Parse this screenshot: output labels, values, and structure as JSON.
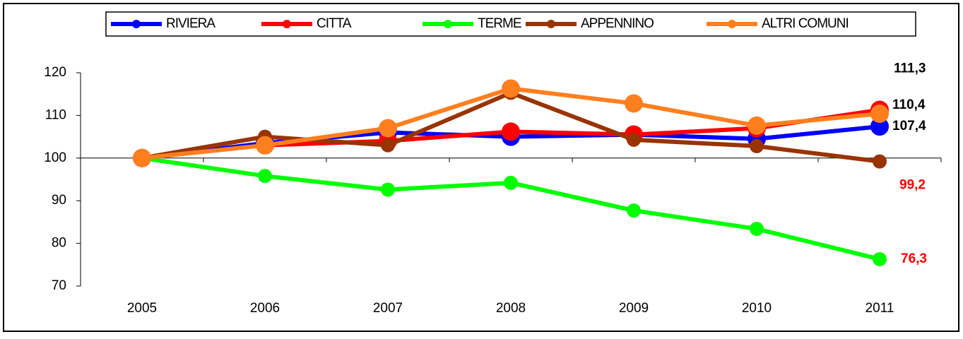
{
  "chart_data": {
    "type": "line",
    "categories": [
      "2005",
      "2006",
      "2007",
      "2008",
      "2009",
      "2010",
      "2011"
    ],
    "series": [
      {
        "name": "RIVIERA",
        "color": "#0000ff",
        "values": [
          100,
          103.5,
          106,
          105,
          105.5,
          104.5,
          107.4
        ],
        "value_labels": [
          null,
          null,
          null,
          null,
          null,
          null,
          "107,4"
        ],
        "label_color": "#000000"
      },
      {
        "name": "CITTA",
        "color": "#ff0000",
        "values": [
          100,
          103,
          104,
          106.2,
          105.5,
          107,
          111.3
        ],
        "value_labels": [
          null,
          null,
          null,
          null,
          null,
          null,
          "111,3"
        ],
        "label_color": "#000000"
      },
      {
        "name": "TERME",
        "color": "#00ff00",
        "values": [
          100,
          95.8,
          92.6,
          94.2,
          87.7,
          83.4,
          76.3
        ],
        "value_labels": [
          null,
          null,
          null,
          null,
          null,
          null,
          "76,3"
        ],
        "label_color": "#ff0000"
      },
      {
        "name": "APPENNINO",
        "color": "#993300",
        "values": [
          100,
          105,
          103,
          115.3,
          104.3,
          102.8,
          99.2
        ],
        "value_labels": [
          null,
          null,
          null,
          null,
          null,
          null,
          "99,2"
        ],
        "label_color": "#ff0000"
      },
      {
        "name": "ALTRI COMUNI",
        "color": "#ff7f1f",
        "values": [
          100,
          103,
          107,
          116.3,
          112.8,
          107.6,
          110.4
        ],
        "value_labels": [
          null,
          null,
          null,
          null,
          null,
          null,
          "110,4"
        ],
        "label_color": "#000000"
      }
    ],
    "ylim": [
      70,
      120
    ],
    "yticks": [
      70,
      80,
      90,
      100,
      110,
      120
    ],
    "legend": "top"
  }
}
